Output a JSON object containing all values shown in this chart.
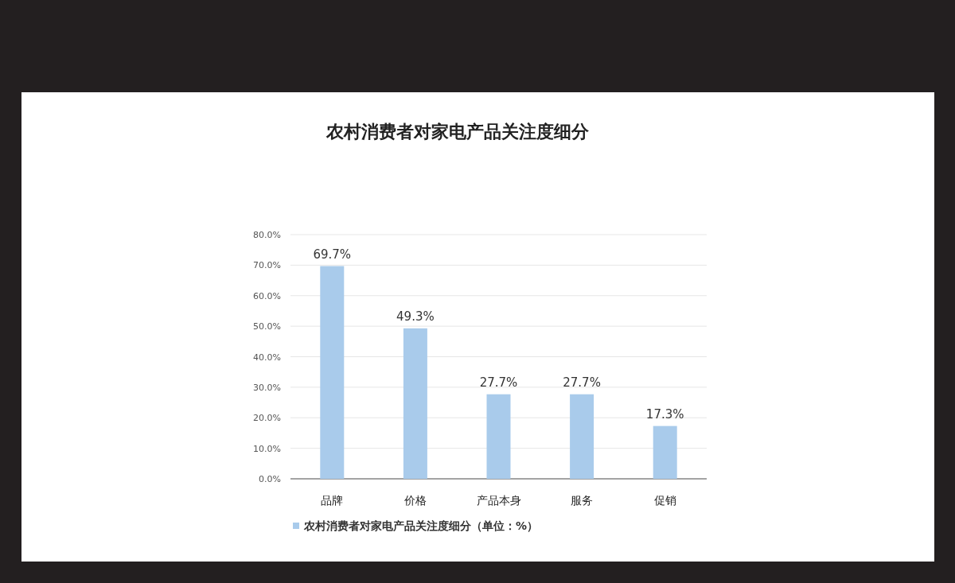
{
  "chart_data": {
    "type": "bar",
    "title": "农村消费者对家电产品关注度细分",
    "categories": [
      "品牌",
      "价格",
      "产品本身",
      "服务",
      "促销"
    ],
    "series": [
      {
        "name": "农村消费者对家电产品关注度细分（单位：%）",
        "color": "#a9cbeb",
        "values": [
          69.7,
          49.3,
          27.7,
          27.7,
          17.3
        ],
        "value_labels": [
          "69.7%",
          "49.3%",
          "27.7%",
          "27.7%",
          "17.3%"
        ]
      }
    ],
    "ylim": [
      0,
      80
    ],
    "yticks": [
      {
        "value": 0,
        "label": "0.0%"
      },
      {
        "value": 10,
        "label": "10.0%"
      },
      {
        "value": 20,
        "label": "20.0%"
      },
      {
        "value": 30,
        "label": "30.0%"
      },
      {
        "value": 40,
        "label": "40.0%"
      },
      {
        "value": 50,
        "label": "50.0%"
      },
      {
        "value": 60,
        "label": "60.0%"
      },
      {
        "value": 70,
        "label": "70.0%"
      },
      {
        "value": 80,
        "label": "80.0%"
      }
    ],
    "grid": "y",
    "legend": "bottom"
  }
}
